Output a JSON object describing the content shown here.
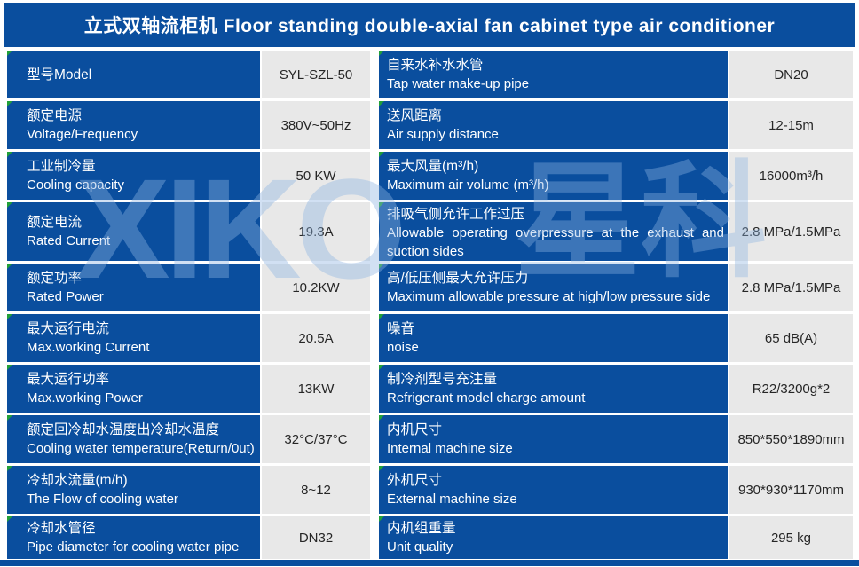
{
  "header": {
    "title": "立式双轴流柜机 Floor standing double-axial fan cabinet type air conditioner"
  },
  "watermark": {
    "latin": "XIKO",
    "cjk": "星科"
  },
  "colors": {
    "accent_blue": "#0a4e9e",
    "value_cell_gray": "#e8e8e8",
    "flag_green": "#21a038",
    "watermark_blue": "#8db4e2",
    "label_text": "#ffffff",
    "value_text": "#262626"
  },
  "rows": [
    {
      "l_zh": "型号Model",
      "l_en": "",
      "l_val": "SYL-SZL-50",
      "r_zh": "自来水补水水管",
      "r_en": "Tap water make-up pipe",
      "r_val": "DN20"
    },
    {
      "l_zh": "额定电源",
      "l_en": "Voltage/Frequency",
      "l_val": "380V~50Hz",
      "r_zh": "送风距离",
      "r_en": "Air supply distance",
      "r_val": "12-15m"
    },
    {
      "l_zh": "工业制冷量",
      "l_en": "Cooling capacity",
      "l_val": "50 KW",
      "r_zh": "最大风量(m³/h)",
      "r_en": "Maximum air volume (m³/h)",
      "r_val": "16000m³/h"
    },
    {
      "l_zh": "额定电流",
      "l_en": "Rated Current",
      "l_val": "19.3A",
      "r_zh": "排吸气侧允许工作过压",
      "r_en": "Allowable operating overpressure at the exhaust and suction sides",
      "r_val": "2.8 MPa/1.5MPa"
    },
    {
      "l_zh": "额定功率",
      "l_en": "Rated Power",
      "l_val": "10.2KW",
      "r_zh": "高/低压侧最大允许压力",
      "r_en": "Maximum allowable pressure at high/low pressure side",
      "r_val": "2.8 MPa/1.5MPa"
    },
    {
      "l_zh": "最大运行电流",
      "l_en": "Max.working Current",
      "l_val": "20.5A",
      "r_zh": "噪音",
      "r_en": "noise",
      "r_val": "65 dB(A)"
    },
    {
      "l_zh": "最大运行功率",
      "l_en": "Max.working Power",
      "l_val": "13KW",
      "r_zh": "制冷剂型号充注量",
      "r_en": "Refrigerant model charge amount",
      "r_val": "R22/3200g*2"
    },
    {
      "l_zh": "额定回冷却水温度出冷却水温度",
      "l_en": "Cooling water temperature(Return/0ut)",
      "l_val": "32°C/37°C",
      "r_zh": "内机尺寸",
      "r_en": "Internal machine size",
      "r_val": "850*550*1890mm"
    },
    {
      "l_zh": "冷却水流量(m/h)",
      "l_en": "The Flow of cooling water",
      "l_val": "8~12",
      "r_zh": "外机尺寸",
      "r_en": "External machine size",
      "r_val": "930*930*1170mm"
    },
    {
      "l_zh": "冷却水管径",
      "l_en": "Pipe diameter for cooling water pipe",
      "l_val": "DN32",
      "r_zh": "内机组重量",
      "r_en": "Unit quality",
      "r_val": "295 kg"
    }
  ]
}
